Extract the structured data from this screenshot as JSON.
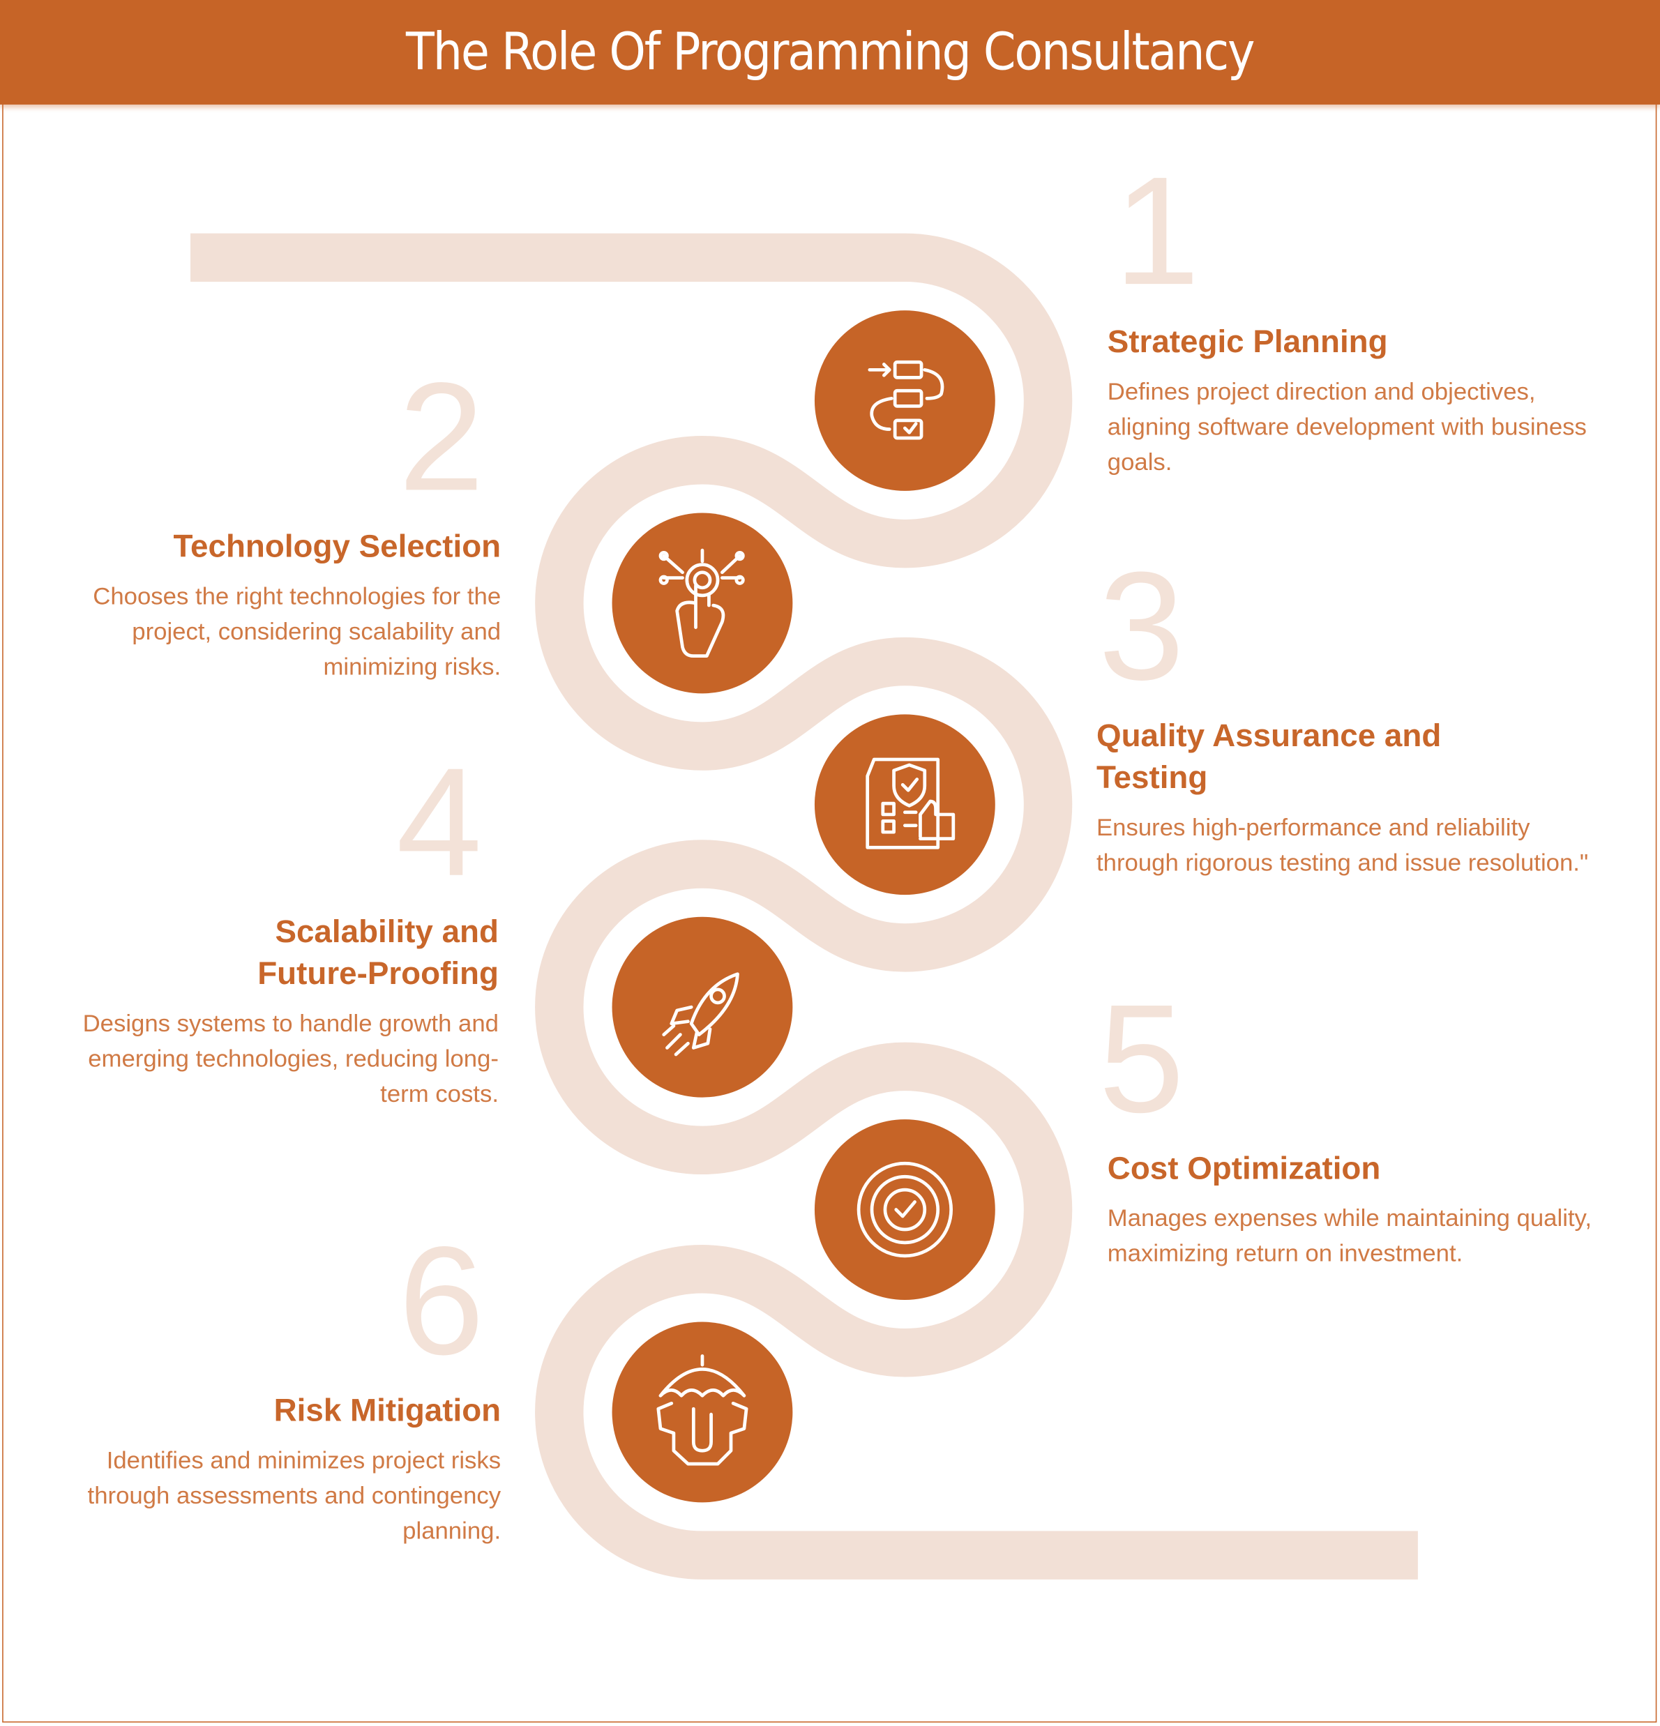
{
  "title": "The Role Of Programming Consultancy",
  "colors": {
    "accent": "#c66427",
    "track": "#f2e0d6",
    "text": "#d07a45"
  },
  "steps": [
    {
      "number": "1",
      "title": "Strategic Planning",
      "description": "Defines project direction and objectives, aligning software development with business goals.",
      "icon": "workflow-icon"
    },
    {
      "number": "2",
      "title": "Technology Selection",
      "description": "Chooses the right technologies for the project, considering scalability and minimizing risks.",
      "icon": "touch-tech-icon"
    },
    {
      "number": "3",
      "title": "Quality Assurance and Testing",
      "description": "Ensures high-performance and reliability through rigorous testing and issue resolution.\"",
      "icon": "quality-checklist-icon"
    },
    {
      "number": "4",
      "title": "Scalability and Future-Proofing",
      "description": "Designs systems to handle growth and emerging technologies, reducing long-term costs.",
      "icon": "rocket-icon"
    },
    {
      "number": "5",
      "title": "Cost Optimization",
      "description": "Manages expenses while maintaining quality, maximizing return on investment.",
      "icon": "target-check-icon"
    },
    {
      "number": "6",
      "title": "Risk Mitigation",
      "description": "Identifies and minimizes project risks through assessments and contingency planning.",
      "icon": "umbrella-gear-icon"
    }
  ]
}
